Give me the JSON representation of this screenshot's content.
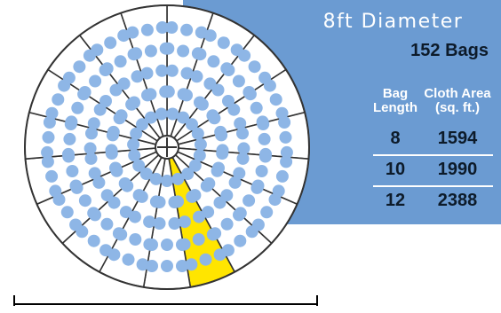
{
  "panel": {
    "title": "8ft Diameter",
    "bag_count": "152 Bags",
    "column_headers": [
      {
        "line1": "Bag",
        "line2": "Length"
      },
      {
        "line1": "Cloth Area",
        "line2": "(sq. ft.)"
      }
    ],
    "rows": [
      {
        "length": "8",
        "area": "1594"
      },
      {
        "length": "10",
        "area": "1990"
      },
      {
        "length": "12",
        "area": "2388"
      }
    ]
  },
  "diagram": {
    "sectors": 19,
    "highlighted_sector": 8,
    "colors": {
      "panel": "#6b9bd2",
      "bag": "#8eb6e6",
      "highlight": "#ffe500",
      "line": "#333333"
    }
  }
}
